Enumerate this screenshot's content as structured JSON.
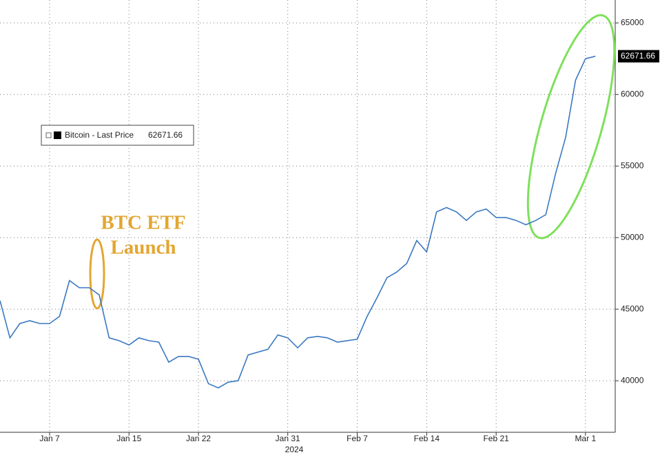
{
  "chart_data": {
    "type": "line",
    "x": [
      "2024-01-02",
      "2024-01-03",
      "2024-01-04",
      "2024-01-05",
      "2024-01-06",
      "2024-01-07",
      "2024-01-08",
      "2024-01-09",
      "2024-01-10",
      "2024-01-11",
      "2024-01-12",
      "2024-01-13",
      "2024-01-14",
      "2024-01-15",
      "2024-01-16",
      "2024-01-17",
      "2024-01-18",
      "2024-01-19",
      "2024-01-20",
      "2024-01-21",
      "2024-01-22",
      "2024-01-23",
      "2024-01-24",
      "2024-01-25",
      "2024-01-26",
      "2024-01-27",
      "2024-01-28",
      "2024-01-29",
      "2024-01-30",
      "2024-01-31",
      "2024-02-01",
      "2024-02-02",
      "2024-02-03",
      "2024-02-04",
      "2024-02-05",
      "2024-02-06",
      "2024-02-07",
      "2024-02-08",
      "2024-02-09",
      "2024-02-10",
      "2024-02-11",
      "2024-02-12",
      "2024-02-13",
      "2024-02-14",
      "2024-02-15",
      "2024-02-16",
      "2024-02-17",
      "2024-02-18",
      "2024-02-19",
      "2024-02-20",
      "2024-02-21",
      "2024-02-22",
      "2024-02-23",
      "2024-02-24",
      "2024-02-25",
      "2024-02-26",
      "2024-02-27",
      "2024-02-28",
      "2024-02-29",
      "2024-03-01",
      "2024-03-02"
    ],
    "series": [
      {
        "name": "Bitcoin - Last Price",
        "color": "#3a78c0",
        "values": [
          45600,
          43000,
          44000,
          44200,
          44000,
          44000,
          44500,
          47000,
          46500,
          46500,
          46000,
          43000,
          42800,
          42500,
          43000,
          42800,
          42700,
          41300,
          41700,
          41700,
          41500,
          39800,
          39500,
          39900,
          40000,
          41800,
          42000,
          42200,
          43200,
          43000,
          42300,
          43000,
          43100,
          43000,
          42700,
          42800,
          42900,
          44500,
          45800,
          47200,
          47600,
          48200,
          49800,
          49000,
          51800,
          52100,
          51800,
          51200,
          51800,
          52000,
          51400,
          51400,
          51200,
          50900,
          51200,
          51600,
          54500,
          57000,
          61000,
          62500,
          62671.66
        ]
      }
    ],
    "xlim": [
      "2024-01-02",
      "2024-03-04"
    ],
    "xticks": [
      {
        "value": "2024-01-07",
        "label": "Jan 7"
      },
      {
        "value": "2024-01-15",
        "label": "Jan 15"
      },
      {
        "value": "2024-01-22",
        "label": "Jan 22"
      },
      {
        "value": "2024-01-31",
        "label": "Jan 31"
      },
      {
        "value": "2024-02-07",
        "label": "Feb 7"
      },
      {
        "value": "2024-02-14",
        "label": "Feb 14"
      },
      {
        "value": "2024-02-21",
        "label": "Feb 21"
      },
      {
        "value": "2024-03-01",
        "label": "Mar 1"
      }
    ],
    "x_year_label": "2024",
    "ylim": [
      36400,
      66600
    ],
    "yticks": [
      40000,
      45000,
      50000,
      55000,
      60000,
      65000
    ],
    "grid": true,
    "annotations": [
      "BTC ETF",
      "Launch"
    ]
  }
}
